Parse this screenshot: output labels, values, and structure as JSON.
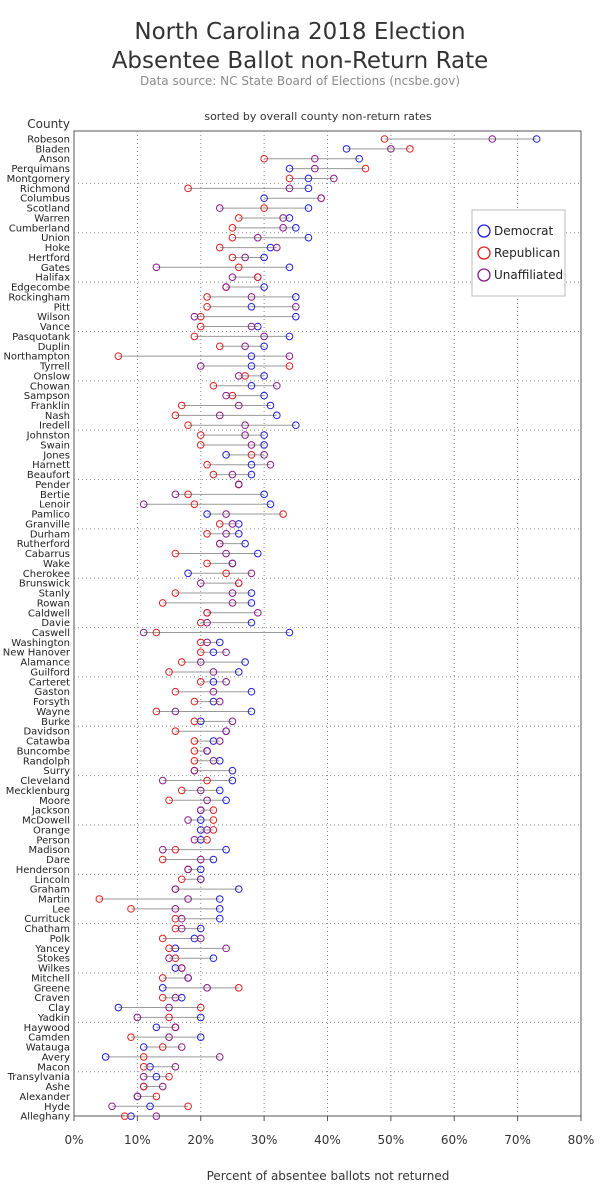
{
  "chart_data": {
    "type": "scatter",
    "title_line1": "North Carolina 2018 Election",
    "title_line2": "Absentee Ballot non-Return Rate",
    "subtitle": "Data source: NC State Board of Elections (ncsbe.gov)",
    "note": "sorted by overall county non-return rates",
    "ylabel": "County",
    "xlabel": "Percent of absentee ballots not returned",
    "xlim": [
      0,
      80
    ],
    "xticks": [
      "0%",
      "10%",
      "20%",
      "30%",
      "40%",
      "50%",
      "60%",
      "70%",
      "80%"
    ],
    "grid": "dotted, vertical every 10% and horizontal every 5 counties",
    "legend_position": "top-right",
    "series": [
      {
        "name": "Democrat",
        "color": "#1f1fd6"
      },
      {
        "name": "Republican",
        "color": "#e02020"
      },
      {
        "name": "Unaffiliated",
        "color": "#8a1a8a"
      }
    ],
    "counties": [
      {
        "name": "Robeson",
        "dem": 73,
        "rep": 49,
        "una": 66
      },
      {
        "name": "Bladen",
        "dem": 43,
        "rep": 53,
        "una": 50
      },
      {
        "name": "Anson",
        "dem": 45,
        "rep": 30,
        "una": 38
      },
      {
        "name": "Perquimans",
        "dem": 34,
        "rep": 46,
        "una": 38
      },
      {
        "name": "Montgomery",
        "dem": 37,
        "rep": 34,
        "una": 41
      },
      {
        "name": "Richmond",
        "dem": 37,
        "rep": 18,
        "una": 34
      },
      {
        "name": "Columbus",
        "dem": 30,
        "rep": 39,
        "una": 39
      },
      {
        "name": "Scotland",
        "dem": 37,
        "rep": 30,
        "una": 23
      },
      {
        "name": "Warren",
        "dem": 34,
        "rep": 26,
        "una": 33
      },
      {
        "name": "Cumberland",
        "dem": 35,
        "rep": 25,
        "una": 33
      },
      {
        "name": "Union",
        "dem": 37,
        "rep": 25,
        "una": 29
      },
      {
        "name": "Hoke",
        "dem": 31,
        "rep": 23,
        "una": 32
      },
      {
        "name": "Hertford",
        "dem": 30,
        "rep": 25,
        "una": 27
      },
      {
        "name": "Gates",
        "dem": 34,
        "rep": 26,
        "una": 13
      },
      {
        "name": "Halifax",
        "dem": 29,
        "rep": 29,
        "una": 25
      },
      {
        "name": "Edgecombe",
        "dem": 30,
        "rep": 24,
        "una": 24
      },
      {
        "name": "Rockingham",
        "dem": 35,
        "rep": 21,
        "una": 28
      },
      {
        "name": "Pitt",
        "dem": 28,
        "rep": 21,
        "una": 35
      },
      {
        "name": "Wilson",
        "dem": 35,
        "rep": 20,
        "una": 19
      },
      {
        "name": "Vance",
        "dem": 29,
        "rep": 20,
        "una": 28
      },
      {
        "name": "Pasquotank",
        "dem": 34,
        "rep": 19,
        "una": 30
      },
      {
        "name": "Duplin",
        "dem": 30,
        "rep": 23,
        "una": 27
      },
      {
        "name": "Northampton",
        "dem": 28,
        "rep": 7,
        "una": 34
      },
      {
        "name": "Tyrrell",
        "dem": 28,
        "rep": 34,
        "una": 20
      },
      {
        "name": "Onslow",
        "dem": 30,
        "rep": 27,
        "una": 26
      },
      {
        "name": "Chowan",
        "dem": 28,
        "rep": 22,
        "una": 32
      },
      {
        "name": "Sampson",
        "dem": 30,
        "rep": 25,
        "una": 24
      },
      {
        "name": "Franklin",
        "dem": 31,
        "rep": 17,
        "una": 26
      },
      {
        "name": "Nash",
        "dem": 32,
        "rep": 16,
        "una": 23
      },
      {
        "name": "Iredell",
        "dem": 35,
        "rep": 18,
        "una": 27
      },
      {
        "name": "Johnston",
        "dem": 30,
        "rep": 20,
        "una": 27
      },
      {
        "name": "Swain",
        "dem": 30,
        "rep": 20,
        "una": 28
      },
      {
        "name": "Jones",
        "dem": 24,
        "rep": 28,
        "una": 30
      },
      {
        "name": "Harnett",
        "dem": 28,
        "rep": 21,
        "una": 31
      },
      {
        "name": "Beaufort",
        "dem": 28,
        "rep": 22,
        "una": 25
      },
      {
        "name": "Pender",
        "dem": 26,
        "rep": 26,
        "una": 26
      },
      {
        "name": "Bertie",
        "dem": 30,
        "rep": 18,
        "una": 16
      },
      {
        "name": "Lenoir",
        "dem": 31,
        "rep": 19,
        "una": 11
      },
      {
        "name": "Pamlico",
        "dem": 21,
        "rep": 33,
        "una": 24
      },
      {
        "name": "Granville",
        "dem": 26,
        "rep": 23,
        "una": 25
      },
      {
        "name": "Durham",
        "dem": 26,
        "rep": 21,
        "una": 24
      },
      {
        "name": "Rutherford",
        "dem": 27,
        "rep": 23,
        "una": 23
      },
      {
        "name": "Cabarrus",
        "dem": 29,
        "rep": 16,
        "una": 24
      },
      {
        "name": "Wake",
        "dem": 25,
        "rep": 21,
        "una": 25
      },
      {
        "name": "Cherokee",
        "dem": 18,
        "rep": 24,
        "una": 28
      },
      {
        "name": "Brunswick",
        "dem": 26,
        "rep": 26,
        "una": 20
      },
      {
        "name": "Stanly",
        "dem": 28,
        "rep": 16,
        "una": 25
      },
      {
        "name": "Rowan",
        "dem": 28,
        "rep": 14,
        "una": 25
      },
      {
        "name": "Caldwell",
        "dem": 21,
        "rep": 21,
        "una": 29
      },
      {
        "name": "Davie",
        "dem": 28,
        "rep": 20,
        "una": 21
      },
      {
        "name": "Caswell",
        "dem": 34,
        "rep": 13,
        "una": 11
      },
      {
        "name": "Washington",
        "dem": 23,
        "rep": 20,
        "una": 21
      },
      {
        "name": "New Hanover",
        "dem": 22,
        "rep": 20,
        "una": 24
      },
      {
        "name": "Alamance",
        "dem": 27,
        "rep": 17,
        "una": 20
      },
      {
        "name": "Guilford",
        "dem": 26,
        "rep": 15,
        "una": 22
      },
      {
        "name": "Carteret",
        "dem": 22,
        "rep": 20,
        "una": 24
      },
      {
        "name": "Gaston",
        "dem": 28,
        "rep": 16,
        "una": 22
      },
      {
        "name": "Forsyth",
        "dem": 22,
        "rep": 19,
        "una": 23
      },
      {
        "name": "Wayne",
        "dem": 28,
        "rep": 13,
        "una": 16
      },
      {
        "name": "Burke",
        "dem": 20,
        "rep": 19,
        "una": 25
      },
      {
        "name": "Davidson",
        "dem": 24,
        "rep": 16,
        "una": 24
      },
      {
        "name": "Catawba",
        "dem": 22,
        "rep": 19,
        "una": 23
      },
      {
        "name": "Buncombe",
        "dem": 21,
        "rep": 19,
        "una": 21
      },
      {
        "name": "Randolph",
        "dem": 23,
        "rep": 19,
        "una": 22
      },
      {
        "name": "Surry",
        "dem": 25,
        "rep": 19,
        "una": 19
      },
      {
        "name": "Cleveland",
        "dem": 25,
        "rep": 21,
        "una": 14
      },
      {
        "name": "Mecklenburg",
        "dem": 23,
        "rep": 17,
        "una": 20
      },
      {
        "name": "Moore",
        "dem": 24,
        "rep": 15,
        "una": 21
      },
      {
        "name": "Jackson",
        "dem": 20,
        "rep": 22,
        "una": 20
      },
      {
        "name": "McDowell",
        "dem": 20,
        "rep": 22,
        "una": 18
      },
      {
        "name": "Orange",
        "dem": 20,
        "rep": 22,
        "una": 21
      },
      {
        "name": "Person",
        "dem": 20,
        "rep": 21,
        "una": 19
      },
      {
        "name": "Madison",
        "dem": 24,
        "rep": 16,
        "una": 14
      },
      {
        "name": "Dare",
        "dem": 22,
        "rep": 14,
        "una": 20
      },
      {
        "name": "Henderson",
        "dem": 20,
        "rep": 18,
        "una": 18
      },
      {
        "name": "Lincoln",
        "dem": 20,
        "rep": 17,
        "una": 20
      },
      {
        "name": "Graham",
        "dem": 26,
        "rep": 16,
        "una": 16
      },
      {
        "name": "Martin",
        "dem": 23,
        "rep": 4,
        "una": 18
      },
      {
        "name": "Lee",
        "dem": 23,
        "rep": 9,
        "una": 16
      },
      {
        "name": "Currituck",
        "dem": 23,
        "rep": 16,
        "una": 17
      },
      {
        "name": "Chatham",
        "dem": 20,
        "rep": 16,
        "una": 17
      },
      {
        "name": "Polk",
        "dem": 19,
        "rep": 14,
        "una": 20
      },
      {
        "name": "Yancey",
        "dem": 16,
        "rep": 15,
        "una": 24
      },
      {
        "name": "Stokes",
        "dem": 22,
        "rep": 16,
        "una": 15
      },
      {
        "name": "Wilkes",
        "dem": 16,
        "rep": 17,
        "una": 17
      },
      {
        "name": "Mitchell",
        "dem": 18,
        "rep": 14,
        "una": 18
      },
      {
        "name": "Greene",
        "dem": 14,
        "rep": 26,
        "una": 21
      },
      {
        "name": "Craven",
        "dem": 17,
        "rep": 14,
        "una": 16
      },
      {
        "name": "Clay",
        "dem": 7,
        "rep": 20,
        "una": 15
      },
      {
        "name": "Yadkin",
        "dem": 20,
        "rep": 15,
        "una": 10
      },
      {
        "name": "Haywood",
        "dem": 13,
        "rep": 16,
        "una": 16
      },
      {
        "name": "Camden",
        "dem": 20,
        "rep": 9,
        "una": 15
      },
      {
        "name": "Watauga",
        "dem": 11,
        "rep": 14,
        "una": 17
      },
      {
        "name": "Avery",
        "dem": 5,
        "rep": 11,
        "una": 23
      },
      {
        "name": "Macon",
        "dem": 12,
        "rep": 11,
        "una": 16
      },
      {
        "name": "Transylvania",
        "dem": 13,
        "rep": 15,
        "una": 11
      },
      {
        "name": "Ashe",
        "dem": 11,
        "rep": 11,
        "una": 14
      },
      {
        "name": "Alexander",
        "dem": 10,
        "rep": 13,
        "una": 10
      },
      {
        "name": "Hyde",
        "dem": 12,
        "rep": 18,
        "una": 6
      },
      {
        "name": "Alleghany",
        "dem": 9,
        "rep": 8,
        "una": 13
      }
    ]
  }
}
